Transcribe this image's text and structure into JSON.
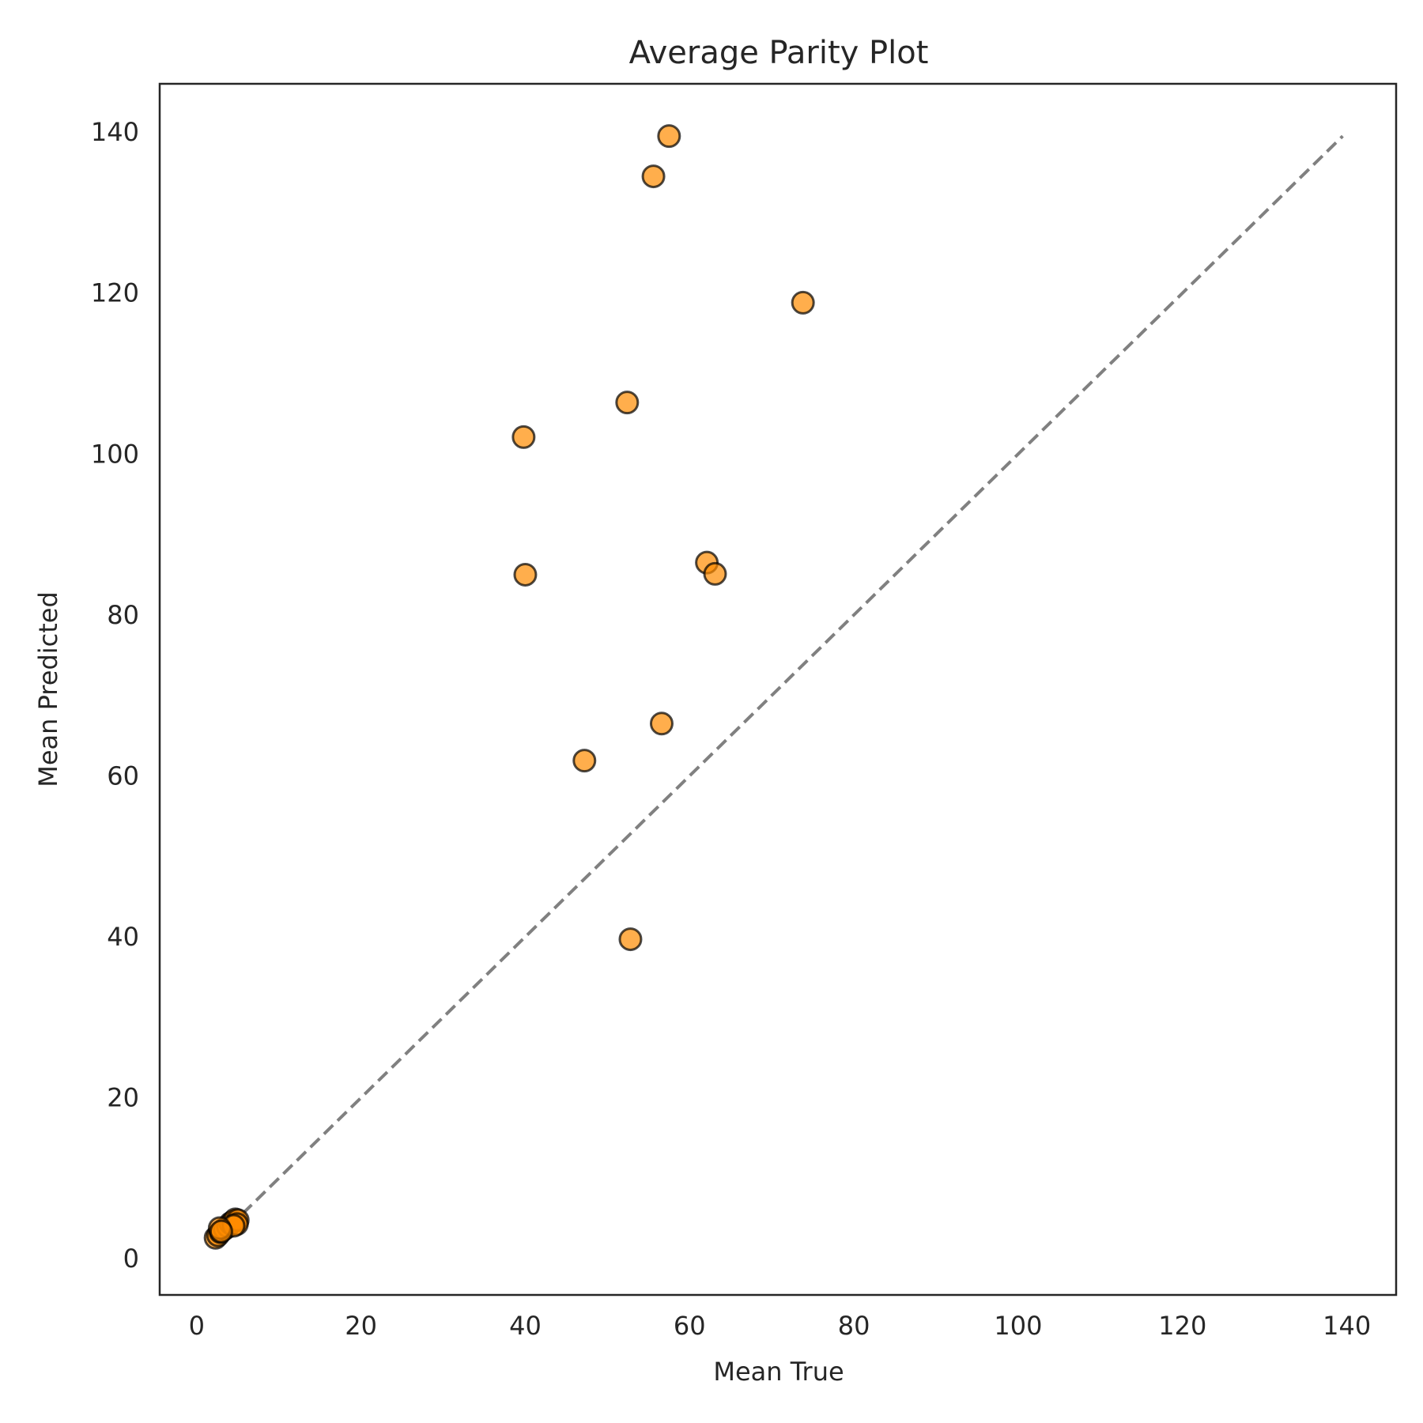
{
  "chart_data": {
    "type": "scatter",
    "title": "Average Parity Plot",
    "xlabel": "Mean True",
    "ylabel": "Mean Predicted",
    "xlim": [
      -4.5,
      146
    ],
    "ylim": [
      -4.5,
      146
    ],
    "xticks": [
      0,
      20,
      40,
      60,
      80,
      100,
      120,
      140
    ],
    "yticks": [
      0,
      20,
      40,
      60,
      80,
      100,
      120,
      140
    ],
    "grid": false,
    "parity_line": {
      "from": 2.3,
      "to": 139.5,
      "color": "#808080",
      "style": "dashed"
    },
    "marker": {
      "fill": "#ff8c00",
      "opacity": 0.7,
      "edge": "#000000"
    },
    "points": [
      {
        "x": 57.5,
        "y": 139.5
      },
      {
        "x": 55.6,
        "y": 134.5
      },
      {
        "x": 73.8,
        "y": 118.8
      },
      {
        "x": 52.4,
        "y": 106.4
      },
      {
        "x": 39.8,
        "y": 102.1
      },
      {
        "x": 62.1,
        "y": 86.5
      },
      {
        "x": 63.1,
        "y": 85.1
      },
      {
        "x": 40.0,
        "y": 85.0
      },
      {
        "x": 56.6,
        "y": 66.5
      },
      {
        "x": 47.2,
        "y": 61.9
      },
      {
        "x": 52.8,
        "y": 39.7
      },
      {
        "x": 2.3,
        "y": 2.6
      },
      {
        "x": 2.6,
        "y": 2.9
      },
      {
        "x": 2.9,
        "y": 3.3
      },
      {
        "x": 3.4,
        "y": 3.7
      },
      {
        "x": 3.8,
        "y": 4.0
      },
      {
        "x": 4.1,
        "y": 4.4
      },
      {
        "x": 4.4,
        "y": 4.6
      },
      {
        "x": 4.7,
        "y": 4.9
      },
      {
        "x": 5.0,
        "y": 4.8
      },
      {
        "x": 4.9,
        "y": 4.3
      },
      {
        "x": 4.5,
        "y": 4.1
      },
      {
        "x": 2.8,
        "y": 3.8
      },
      {
        "x": 3.0,
        "y": 3.4
      }
    ]
  }
}
